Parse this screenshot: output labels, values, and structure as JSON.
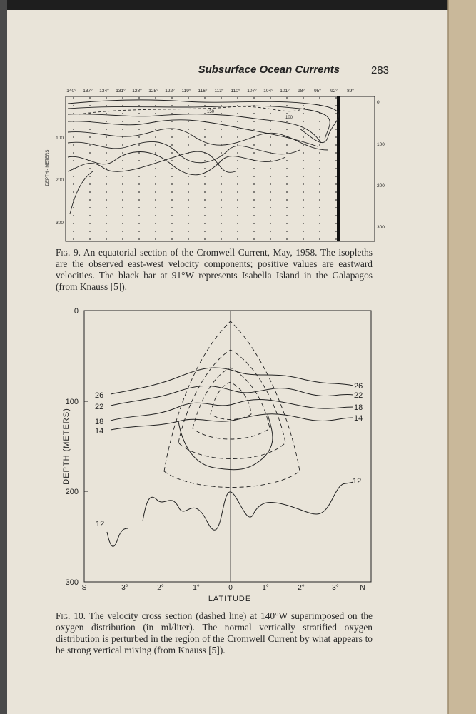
{
  "header": {
    "running_title": "Subsurface Ocean Currents",
    "page_number": "283"
  },
  "figure_9": {
    "longitudes": [
      "140°",
      "137°",
      "134°",
      "131°",
      "128°",
      "125°",
      "122°",
      "119°",
      "116°",
      "113°",
      "110°",
      "107°",
      "104°",
      "101°",
      "98°",
      "95°",
      "92°",
      "89°"
    ],
    "depth_axis_label": "DEPTH - METERS",
    "depth_ticks_left": [
      "100",
      "200",
      "300"
    ],
    "depth_ticks_right": [
      "0",
      "100",
      "200",
      "300"
    ],
    "contour_labels": [
      "150",
      "100"
    ],
    "caption_label": "Fig. 9.",
    "caption": "An equatorial section of the Cromwell Current, May, 1958. The isopleths are the observed east-west velocity components; positive values are eastward velocities. The black bar at 91°W represents Isabella Island in the Galapagos (from Knauss [5])."
  },
  "figure_10": {
    "y_axis_label": "DEPTH (METERS)",
    "y_ticks": [
      "0",
      "100",
      "200",
      "300"
    ],
    "x_axis_label": "LATITUDE",
    "x_ticks": [
      "S",
      "3°",
      "2°",
      "1°",
      "0",
      "1°",
      "2°",
      "3°",
      "N"
    ],
    "left_labels": [
      "26",
      "22",
      "18",
      "14",
      "12"
    ],
    "right_labels": [
      "26",
      "22",
      "18",
      "14",
      "12"
    ],
    "caption_label": "Fig. 10.",
    "caption": "The velocity cross section (dashed line) at 140°W superimposed on the oxygen distribution (in ml/liter). The normal vertically stratified oxygen distribution is perturbed in the region of the Cromwell Current by what appears to be strong vertical mixing (from Knauss [5])."
  }
}
